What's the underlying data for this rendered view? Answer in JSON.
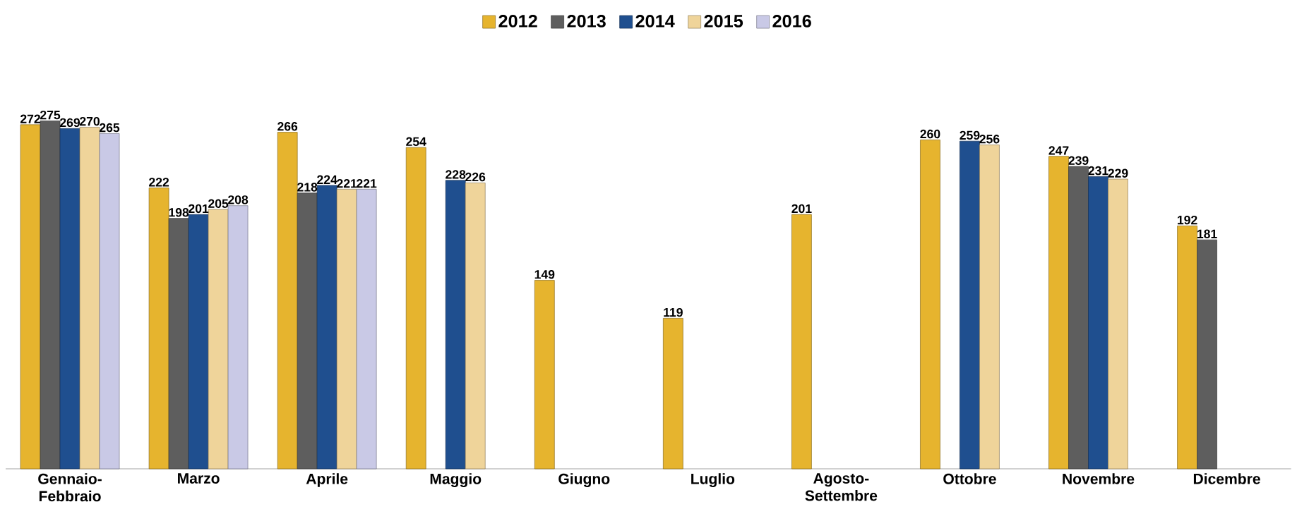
{
  "chart_data": {
    "type": "bar",
    "categories": [
      "Gennaio-Febbraio",
      "Marzo",
      "Aprile",
      "Maggio",
      "Giugno",
      "Luglio",
      "Agosto-Settembre",
      "Ottobre",
      "Novembre",
      "Dicembre"
    ],
    "series": [
      {
        "name": "2012",
        "color": "#e6b42e",
        "values": [
          272,
          222,
          266,
          254,
          149,
          119,
          201,
          260,
          247,
          192
        ]
      },
      {
        "name": "2013",
        "color": "#5e5e5e",
        "values": [
          275,
          198,
          218,
          null,
          null,
          null,
          null,
          null,
          239,
          181
        ]
      },
      {
        "name": "2014",
        "color": "#1f4f8f",
        "values": [
          269,
          201,
          224,
          228,
          null,
          null,
          null,
          259,
          231,
          null
        ]
      },
      {
        "name": "2015",
        "color": "#efd49a",
        "values": [
          270,
          205,
          221,
          226,
          null,
          null,
          null,
          256,
          229,
          null
        ]
      },
      {
        "name": "2016",
        "color": "#c9c9e6",
        "values": [
          265,
          208,
          221,
          null,
          null,
          null,
          null,
          null,
          null,
          null
        ]
      }
    ],
    "data_labels": true,
    "legend": "top"
  }
}
